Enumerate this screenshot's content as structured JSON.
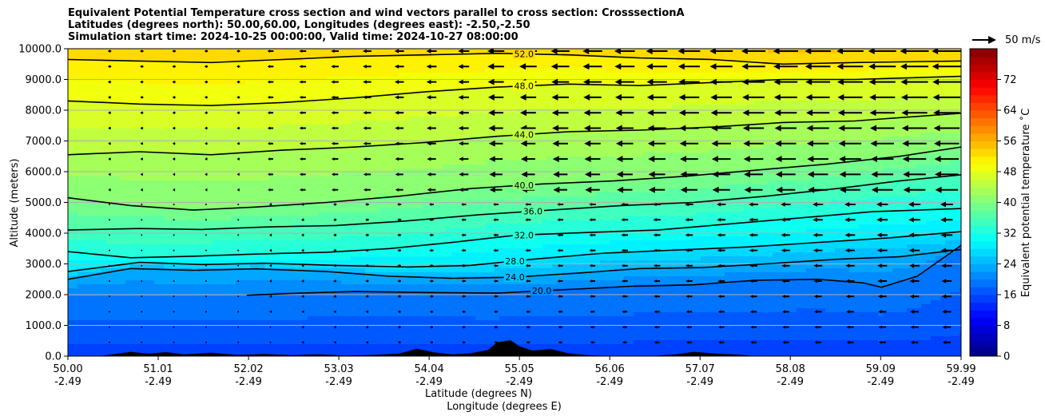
{
  "chart_data": {
    "type": "heatmap",
    "title_lines": [
      "Equivalent Potential Temperature cross section and wind vectors parallel to cross section: CrosssectionA",
      "Latitudes (degrees north): 50.00,60.00, Longitudes (degrees east): -2.50,-2.50",
      "Simulation start time: 2024-10-25 00:00:00, Valid time: 2024-10-27 08:00:00"
    ],
    "xlabel": "Latitude (degrees N)",
    "xlabel2": "Longitude (degrees E)",
    "ylabel": "Altitude (meters)",
    "colorbar_label": "Equivalent potential temperature ˚C",
    "x_ticks": [
      {
        "lat": 50.0,
        "lat_label": "50.00",
        "lon_label": "-2.49"
      },
      {
        "lat": 51.01,
        "lat_label": "51.01",
        "lon_label": "-2.49"
      },
      {
        "lat": 52.02,
        "lat_label": "52.02",
        "lon_label": "-2.49"
      },
      {
        "lat": 53.03,
        "lat_label": "53.03",
        "lon_label": "-2.49"
      },
      {
        "lat": 54.04,
        "lat_label": "54.04",
        "lon_label": "-2.49"
      },
      {
        "lat": 55.05,
        "lat_label": "55.05",
        "lon_label": "-2.49"
      },
      {
        "lat": 56.06,
        "lat_label": "56.06",
        "lon_label": "-2.49"
      },
      {
        "lat": 57.07,
        "lat_label": "57.07",
        "lon_label": "-2.49"
      },
      {
        "lat": 58.08,
        "lat_label": "58.08",
        "lon_label": "-2.49"
      },
      {
        "lat": 59.09,
        "lat_label": "59.09",
        "lon_label": "-2.49"
      },
      {
        "lat": 59.99,
        "lat_label": "59.99",
        "lon_label": "-2.49"
      }
    ],
    "xlim": [
      50.0,
      59.99
    ],
    "y_ticks": [
      0,
      1000,
      2000,
      3000,
      4000,
      5000,
      6000,
      7000,
      8000,
      9000,
      10000
    ],
    "y_tick_labels": [
      "0.0",
      "1000.0",
      "2000.0",
      "3000.0",
      "4000.0",
      "5000.0",
      "6000.0",
      "7000.0",
      "8000.0",
      "9000.0",
      "10000.0"
    ],
    "ylim": [
      0,
      10000
    ],
    "colorbar_ticks": [
      0,
      8,
      16,
      24,
      32,
      40,
      48,
      56,
      64,
      72
    ],
    "colorbar_range": [
      0,
      80
    ],
    "reference_vector": {
      "speed": 50,
      "label": "50 m/s"
    },
    "contours": [
      {
        "level": 20,
        "label": "20.0",
        "label_lat": 55.3,
        "points": [
          [
            52.0,
            1980
          ],
          [
            52.6,
            2050
          ],
          [
            53.2,
            2100
          ],
          [
            54.0,
            2070
          ],
          [
            54.8,
            2050
          ],
          [
            55.6,
            2170
          ],
          [
            56.3,
            2270
          ],
          [
            57.0,
            2320
          ],
          [
            57.7,
            2470
          ],
          [
            58.4,
            2500
          ],
          [
            58.9,
            2380
          ],
          [
            59.1,
            2240
          ],
          [
            59.5,
            2600
          ],
          [
            59.99,
            3600
          ]
        ]
      },
      {
        "level": 24,
        "label": "24.0",
        "label_lat": 55.0,
        "points": [
          [
            50.0,
            2500
          ],
          [
            50.7,
            2850
          ],
          [
            51.4,
            2790
          ],
          [
            52.1,
            2840
          ],
          [
            52.9,
            2750
          ],
          [
            53.6,
            2600
          ],
          [
            54.3,
            2530
          ],
          [
            55.0,
            2570
          ],
          [
            55.7,
            2700
          ],
          [
            56.4,
            2850
          ],
          [
            57.1,
            2880
          ],
          [
            57.8,
            3000
          ],
          [
            58.6,
            3150
          ],
          [
            59.3,
            3230
          ],
          [
            59.99,
            3470
          ]
        ]
      },
      {
        "level": 28,
        "label": "28.0",
        "label_lat": 55.0,
        "points": [
          [
            50.0,
            2750
          ],
          [
            50.8,
            3050
          ],
          [
            51.5,
            2980
          ],
          [
            52.2,
            3020
          ],
          [
            53.0,
            2950
          ],
          [
            53.8,
            2900
          ],
          [
            54.5,
            2950
          ],
          [
            55.2,
            3150
          ],
          [
            56.0,
            3350
          ],
          [
            56.8,
            3450
          ],
          [
            57.6,
            3550
          ],
          [
            58.4,
            3700
          ],
          [
            59.2,
            3850
          ],
          [
            59.99,
            4050
          ]
        ]
      },
      {
        "level": 32,
        "label": "32.0",
        "label_lat": 55.1,
        "points": [
          [
            50.0,
            3400
          ],
          [
            50.7,
            3200
          ],
          [
            51.4,
            3250
          ],
          [
            52.1,
            3320
          ],
          [
            52.9,
            3380
          ],
          [
            53.6,
            3500
          ],
          [
            54.3,
            3700
          ],
          [
            55.0,
            3930
          ],
          [
            55.8,
            4020
          ],
          [
            56.6,
            4100
          ],
          [
            57.4,
            4300
          ],
          [
            58.2,
            4500
          ],
          [
            59.0,
            4700
          ],
          [
            59.99,
            4800
          ]
        ]
      },
      {
        "level": 36,
        "label": "36.0",
        "label_lat": 55.2,
        "points": [
          [
            50.0,
            4100
          ],
          [
            50.8,
            4150
          ],
          [
            51.5,
            4120
          ],
          [
            52.2,
            4200
          ],
          [
            53.0,
            4250
          ],
          [
            53.8,
            4400
          ],
          [
            54.6,
            4600
          ],
          [
            55.4,
            4750
          ],
          [
            56.2,
            4900
          ],
          [
            57.0,
            5000
          ],
          [
            57.8,
            5200
          ],
          [
            58.6,
            5450
          ],
          [
            59.3,
            5700
          ],
          [
            59.99,
            5900
          ]
        ]
      },
      {
        "level": 40,
        "label": "40.0",
        "label_lat": 55.1,
        "points": [
          [
            50.0,
            5150
          ],
          [
            50.7,
            4900
          ],
          [
            51.4,
            4750
          ],
          [
            52.1,
            4850
          ],
          [
            52.9,
            5000
          ],
          [
            53.7,
            5200
          ],
          [
            54.5,
            5450
          ],
          [
            55.3,
            5600
          ],
          [
            56.1,
            5700
          ],
          [
            56.9,
            5850
          ],
          [
            57.7,
            6050
          ],
          [
            58.5,
            6250
          ],
          [
            59.3,
            6500
          ],
          [
            59.99,
            6800
          ]
        ]
      },
      {
        "level": 44,
        "label": "44.0",
        "label_lat": 55.1,
        "points": [
          [
            50.0,
            6550
          ],
          [
            50.8,
            6650
          ],
          [
            51.6,
            6550
          ],
          [
            52.4,
            6700
          ],
          [
            53.2,
            6800
          ],
          [
            54.0,
            6950
          ],
          [
            54.8,
            7150
          ],
          [
            55.6,
            7300
          ],
          [
            56.4,
            7350
          ],
          [
            57.2,
            7450
          ],
          [
            58.0,
            7600
          ],
          [
            58.8,
            7650
          ],
          [
            59.99,
            7900
          ]
        ]
      },
      {
        "level": 48,
        "label": "48.0",
        "label_lat": 55.1,
        "points": [
          [
            50.0,
            8300
          ],
          [
            50.8,
            8200
          ],
          [
            51.6,
            8150
          ],
          [
            52.4,
            8250
          ],
          [
            53.2,
            8400
          ],
          [
            54.0,
            8600
          ],
          [
            54.8,
            8750
          ],
          [
            55.6,
            8850
          ],
          [
            56.4,
            8800
          ],
          [
            57.2,
            8900
          ],
          [
            58.0,
            9000
          ],
          [
            58.8,
            9000
          ],
          [
            59.99,
            9100
          ]
        ]
      },
      {
        "level": 52,
        "label": "52.0",
        "label_lat": 55.1,
        "points": [
          [
            50.0,
            9650
          ],
          [
            50.8,
            9600
          ],
          [
            51.6,
            9550
          ],
          [
            52.4,
            9650
          ],
          [
            53.2,
            9750
          ],
          [
            54.0,
            9800
          ],
          [
            54.8,
            9850
          ],
          [
            55.6,
            9800
          ],
          [
            56.4,
            9700
          ],
          [
            57.2,
            9650
          ],
          [
            58.0,
            9500
          ],
          [
            58.8,
            9550
          ],
          [
            59.99,
            9600
          ]
        ]
      }
    ]
  }
}
